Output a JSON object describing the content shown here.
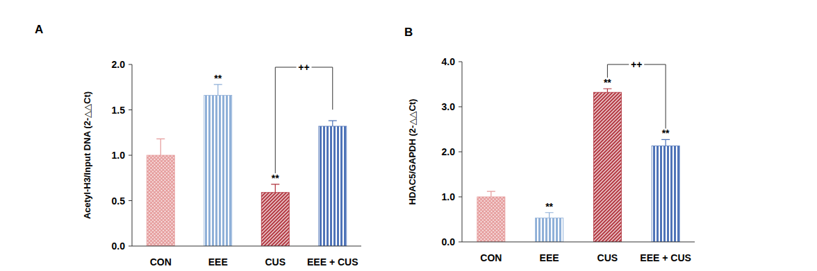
{
  "chart_data": [
    {
      "type": "bar",
      "title": "A",
      "y_label": "Acetyl-H3/Input DNA (2-△△Ct)",
      "categories": [
        "CON",
        "EEE",
        "CUS",
        "EEE + CUS"
      ],
      "values": [
        1.0,
        1.66,
        0.59,
        1.32
      ],
      "errors": [
        0.18,
        0.12,
        0.09,
        0.06
      ],
      "significance": [
        null,
        "**",
        "**",
        null
      ],
      "comparisons": [
        {
          "from": "CUS",
          "to": "EEE + CUS",
          "label": "++"
        }
      ],
      "colors": [
        "#e59a9a",
        "#8fb0d8",
        "#b0303a",
        "#4f74b8"
      ],
      "ylim": [
        0,
        2
      ],
      "yticks": [
        {
          "value": 0,
          "label": "0.0"
        },
        0.5,
        {
          "value": 1,
          "label": "1.0"
        },
        1.5,
        {
          "value": 2,
          "label": "2.0"
        }
      ]
    },
    {
      "type": "bar",
      "title": "B",
      "y_label": "HDAC5/GAPDH (2-△△Ct)",
      "categories": [
        "CON",
        "EEE",
        "CUS",
        "EEE + CUS"
      ],
      "values": [
        1.0,
        0.53,
        3.32,
        2.13
      ],
      "errors": [
        0.12,
        0.12,
        0.08,
        0.14
      ],
      "significance": [
        null,
        "**",
        "**",
        "**"
      ],
      "comparisons": [
        {
          "from": "CUS",
          "to": "EEE + CUS",
          "label": "++"
        }
      ],
      "colors": [
        "#e59a9a",
        "#8fb0d8",
        "#b0303a",
        "#4f74b8"
      ],
      "ylim": [
        0,
        4
      ],
      "yticks": [
        {
          "value": 0,
          "label": "0.0"
        },
        {
          "value": 1,
          "label": "1.0"
        },
        {
          "value": 2,
          "label": "2.0"
        },
        {
          "value": 3,
          "label": "3.0"
        },
        {
          "value": 4,
          "label": "4.0"
        }
      ]
    }
  ]
}
